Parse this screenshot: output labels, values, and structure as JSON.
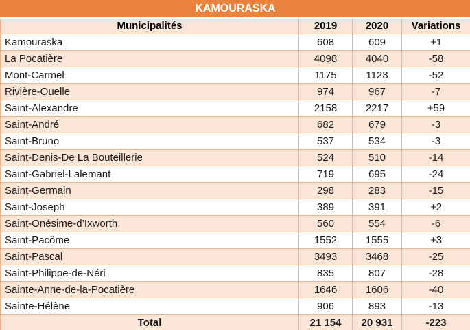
{
  "table": {
    "title": "KAMOURASKA",
    "columns": {
      "municipality": "Municipalités",
      "y2019": "2019",
      "y2020": "2020",
      "variation": "Variations"
    },
    "rows": [
      {
        "name": "Kamouraska",
        "y2019": "608",
        "y2020": "609",
        "variation": "+1"
      },
      {
        "name": "La Pocatière",
        "y2019": "4098",
        "y2020": "4040",
        "variation": "-58"
      },
      {
        "name": "Mont-Carmel",
        "y2019": "1175",
        "y2020": "1123",
        "variation": "-52"
      },
      {
        "name": "Rivière-Ouelle",
        "y2019": "974",
        "y2020": "967",
        "variation": "-7"
      },
      {
        "name": "Saint-Alexandre",
        "y2019": "2158",
        "y2020": "2217",
        "variation": "+59"
      },
      {
        "name": "Saint-André",
        "y2019": "682",
        "y2020": "679",
        "variation": "-3"
      },
      {
        "name": "Saint-Bruno",
        "y2019": "537",
        "y2020": "534",
        "variation": "-3"
      },
      {
        "name": "Saint-Denis-De La Bouteillerie",
        "y2019": "524",
        "y2020": "510",
        "variation": "-14"
      },
      {
        "name": "Saint-Gabriel-Lalemant",
        "y2019": "719",
        "y2020": "695",
        "variation": "-24"
      },
      {
        "name": "Saint-Germain",
        "y2019": "298",
        "y2020": "283",
        "variation": "-15"
      },
      {
        "name": "Saint-Joseph",
        "y2019": "389",
        "y2020": "391",
        "variation": "+2"
      },
      {
        "name": "Saint-Onésime-d’Ixworth",
        "y2019": "560",
        "y2020": "554",
        "variation": "-6"
      },
      {
        "name": "Saint-Pacôme",
        "y2019": "1552",
        "y2020": "1555",
        "variation": "+3"
      },
      {
        "name": "Saint-Pascal",
        "y2019": "3493",
        "y2020": "3468",
        "variation": "-25"
      },
      {
        "name": "Saint-Philippe-de-Néri",
        "y2019": "835",
        "y2020": "807",
        "variation": "-28"
      },
      {
        "name": "Sainte-Anne-de-la-Pocatière",
        "y2019": "1646",
        "y2020": "1606",
        "variation": "-40"
      },
      {
        "name": "Sainte-Hélène",
        "y2019": "906",
        "y2020": "893",
        "variation": "-13"
      }
    ],
    "total": {
      "label": "Total",
      "y2019": "21 154",
      "y2020": "20 931",
      "variation": "-223"
    }
  },
  "colors": {
    "accent_orange": "#e8823c",
    "row_peach": "#fbe5d6",
    "border_orange": "#f3b183",
    "text": "#1a1a1a",
    "title_text": "#ffffff"
  }
}
